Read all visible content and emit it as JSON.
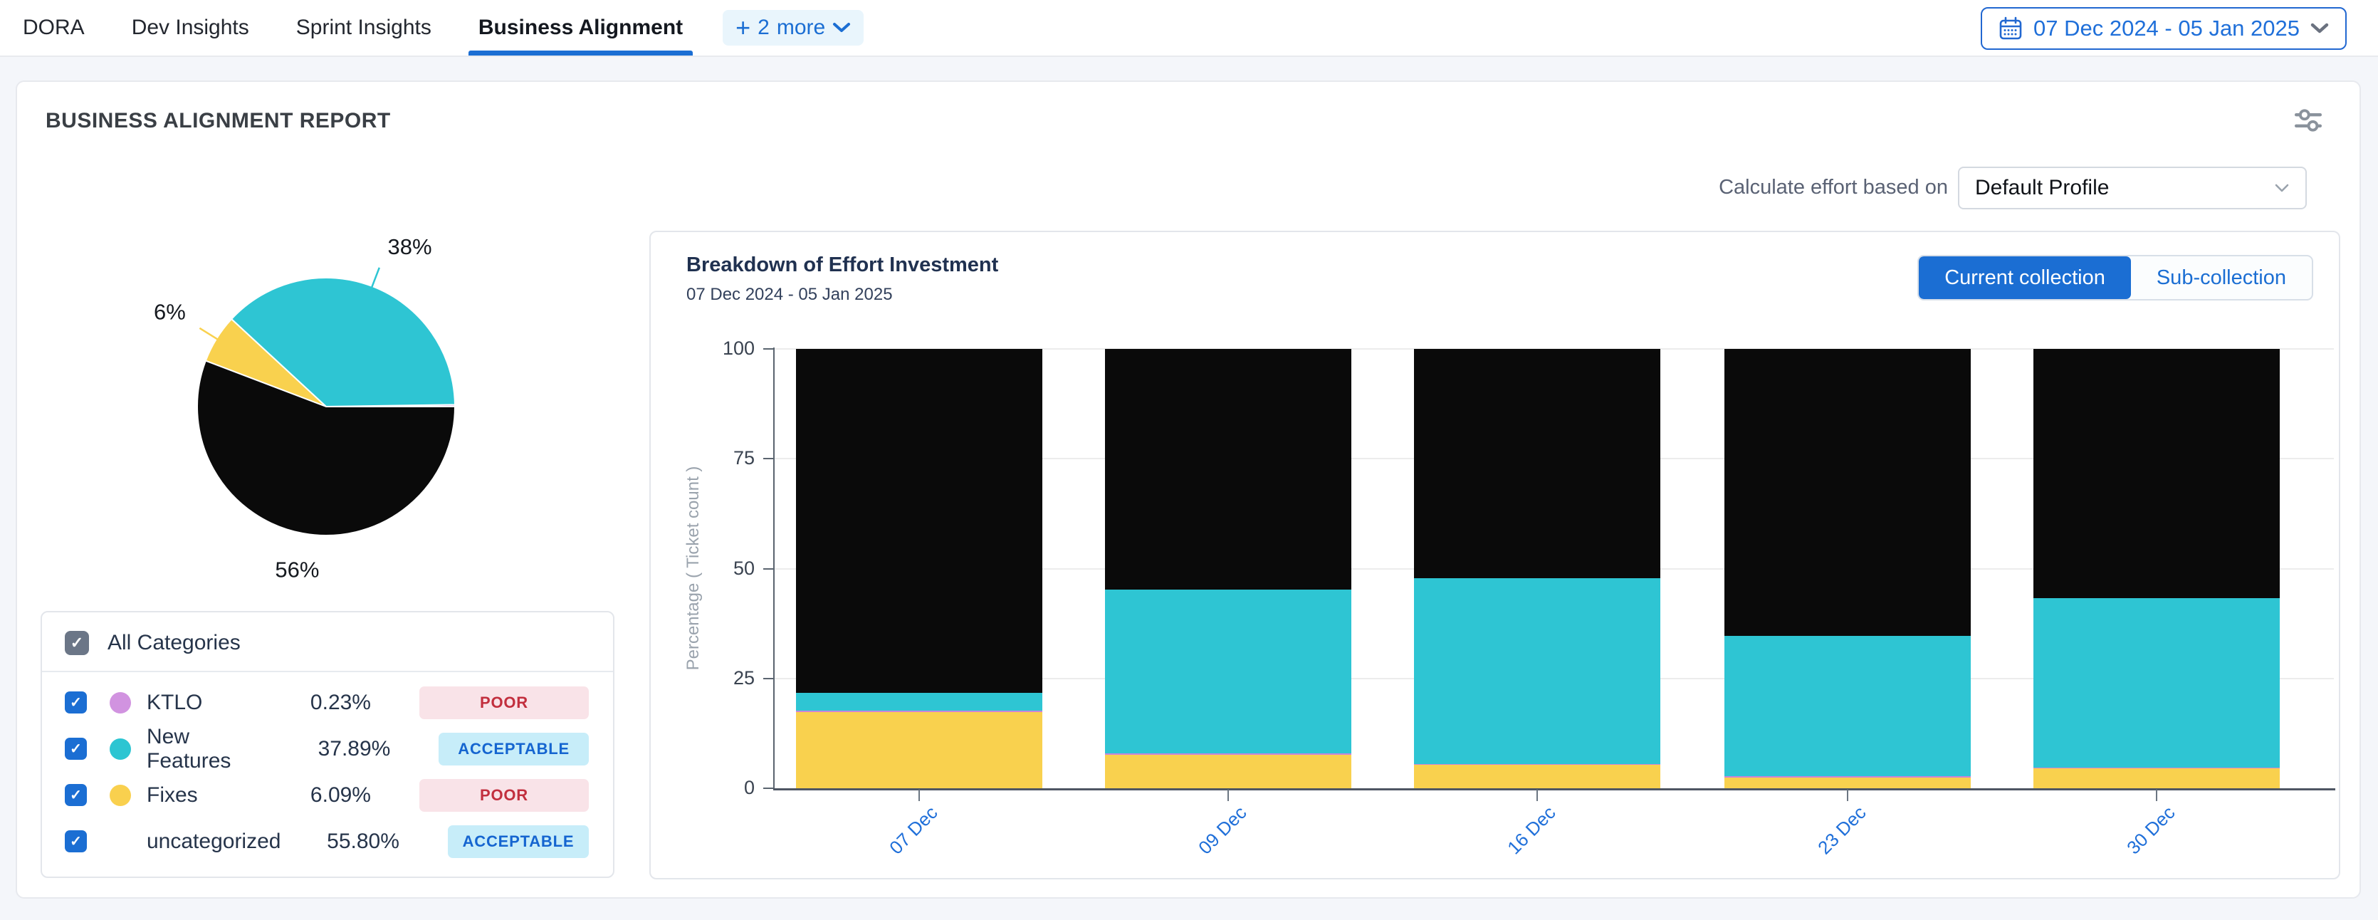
{
  "nav": {
    "tabs": [
      {
        "label": "DORA",
        "active": false
      },
      {
        "label": "Dev Insights",
        "active": false
      },
      {
        "label": "Sprint Insights",
        "active": false
      },
      {
        "label": "Business Alignment",
        "active": true
      }
    ],
    "more_chip": {
      "plus": "+",
      "count": "2",
      "label": "more"
    },
    "date_range": "07 Dec 2024 - 05 Jan 2025"
  },
  "report": {
    "title": "BUSINESS ALIGNMENT REPORT",
    "effort_label": "Calculate effort based on",
    "profile_value": "Default Profile"
  },
  "categories": {
    "all_label": "All Categories",
    "check_glyph": "✓",
    "items": [
      {
        "name": "KTLO",
        "value": "0.23%",
        "badge": "POOR",
        "badge_type": "poor",
        "color": "#d193e0"
      },
      {
        "name": "New Features",
        "value": "37.89%",
        "badge": "ACCEPTABLE",
        "badge_type": "acceptable",
        "color": "#2cc5d2"
      },
      {
        "name": "Fixes",
        "value": "6.09%",
        "badge": "POOR",
        "badge_type": "poor",
        "color": "#f9d04e"
      },
      {
        "name": "uncategorized",
        "value": "55.80%",
        "badge": "ACCEPTABLE",
        "badge_type": "acceptable",
        "color": "transparent"
      }
    ]
  },
  "chart_data": [
    {
      "type": "pie",
      "slices": [
        {
          "name": "KTLO",
          "pct": 0.23,
          "color": "#cb85d8",
          "label": "",
          "leader": false
        },
        {
          "name": "New Features",
          "pct": 37.89,
          "color": "#2ec5d3",
          "label": "38%",
          "leader": true
        },
        {
          "name": "Fixes",
          "pct": 6.09,
          "color": "#f9d14e",
          "label": "6%",
          "leader": true
        },
        {
          "name": "uncategorized",
          "pct": 55.8,
          "color": "#0a0a0a",
          "label": "56%",
          "leader": false
        }
      ]
    },
    {
      "type": "stacked-bar",
      "title": "Breakdown of Effort Investment",
      "subtitle": "07 Dec 2024 - 05 Jan 2025",
      "ylabel": "Percentage ( Ticket count )",
      "ylim": [
        0,
        100
      ],
      "yticks": [
        0,
        25,
        50,
        75,
        100
      ],
      "categories": [
        "07 Dec",
        "09 Dec",
        "16 Dec",
        "23 Dec",
        "30 Dec"
      ],
      "series": [
        {
          "name": "Fixes",
          "color": "#f9d14e",
          "values": [
            17.3,
            7.7,
            5.3,
            2.5,
            4.5
          ]
        },
        {
          "name": "KTLO",
          "color": "#cb85d8",
          "values": [
            0.3,
            0.3,
            0.2,
            0.3,
            0.2
          ]
        },
        {
          "name": "New Features",
          "color": "#2ec5d3",
          "values": [
            4.2,
            37.3,
            42.3,
            31.9,
            38.6
          ]
        },
        {
          "name": "uncategorized",
          "color": "#0a0a0a",
          "values": [
            78.2,
            54.7,
            52.2,
            65.3,
            56.7
          ]
        }
      ],
      "toggle": {
        "active": "Current collection",
        "options": [
          "Current collection",
          "Sub-collection"
        ]
      }
    }
  ],
  "colors": {
    "accent_blue": "#1b6ed3",
    "poor_text": "#c22f3e",
    "poor_bg": "#f9e3e8",
    "acceptable_text": "#1565d0",
    "acceptable_bg": "#c7edf9"
  }
}
